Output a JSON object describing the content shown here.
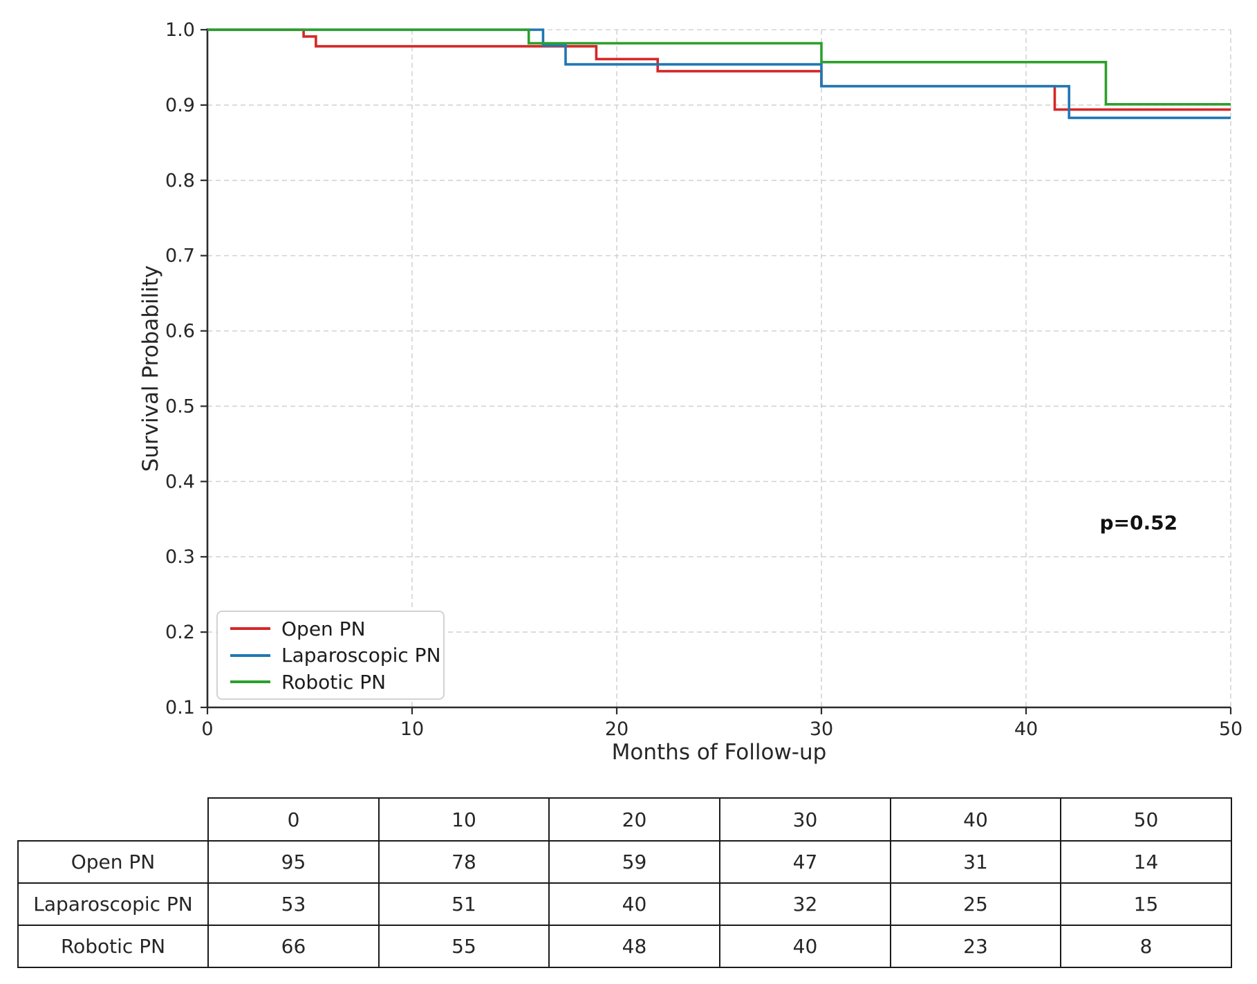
{
  "chart": {
    "ylabel": "Survival Probability",
    "xlabel": "Months of Follow-up",
    "annotation_text": "p=0.52"
  },
  "chart_data": {
    "type": "line",
    "subtype": "kaplan-meier-step",
    "title": "",
    "xlabel": "Months of Follow-up",
    "ylabel": "Survival Probability",
    "xlim": [
      0,
      50
    ],
    "ylim": [
      0.1,
      1.0
    ],
    "xticks": [
      0,
      10,
      20,
      30,
      40,
      50
    ],
    "xtick_labels": [
      "0",
      "10",
      "20",
      "30",
      "40",
      "50"
    ],
    "yticks": [
      0.1,
      0.2,
      0.3,
      0.4,
      0.5,
      0.6,
      0.7,
      0.8,
      0.9,
      1.0
    ],
    "ytick_labels": [
      "0.1",
      "0.2",
      "0.3",
      "0.4",
      "0.5",
      "0.6",
      "0.7",
      "0.8",
      "0.9",
      "1.0"
    ],
    "grid": true,
    "legend_position": "lower left",
    "annotation": {
      "text": "p=0.52",
      "x": 45.5,
      "y": 0.345
    },
    "series": [
      {
        "name": "Open PN",
        "color": "#d62728",
        "steps": [
          [
            0,
            1.0
          ],
          [
            4.7,
            0.991
          ],
          [
            5.3,
            0.978
          ],
          [
            19,
            0.961
          ],
          [
            22,
            0.945
          ],
          [
            30,
            0.925
          ],
          [
            41.4,
            0.894
          ],
          [
            50,
            0.894
          ]
        ]
      },
      {
        "name": "Laparoscopic PN",
        "color": "#1f77b4",
        "steps": [
          [
            0,
            1.0
          ],
          [
            16.4,
            0.979
          ],
          [
            17.5,
            0.954
          ],
          [
            30,
            0.925
          ],
          [
            42.1,
            0.883
          ],
          [
            50,
            0.883
          ]
        ]
      },
      {
        "name": "Robotic PN",
        "color": "#2ca02c",
        "steps": [
          [
            0,
            1.0
          ],
          [
            15.7,
            0.982
          ],
          [
            30,
            0.957
          ],
          [
            43.9,
            0.901
          ],
          [
            50,
            0.901
          ]
        ]
      }
    ]
  },
  "risk_table": {
    "time_points": [
      "0",
      "10",
      "20",
      "30",
      "40",
      "50"
    ],
    "rows": [
      {
        "label": "Open PN",
        "values": [
          "95",
          "78",
          "59",
          "47",
          "31",
          "14"
        ]
      },
      {
        "label": "Laparoscopic PN",
        "values": [
          "53",
          "51",
          "40",
          "32",
          "25",
          "15"
        ]
      },
      {
        "label": "Robotic PN",
        "values": [
          "66",
          "55",
          "48",
          "40",
          "23",
          "8"
        ]
      }
    ]
  }
}
